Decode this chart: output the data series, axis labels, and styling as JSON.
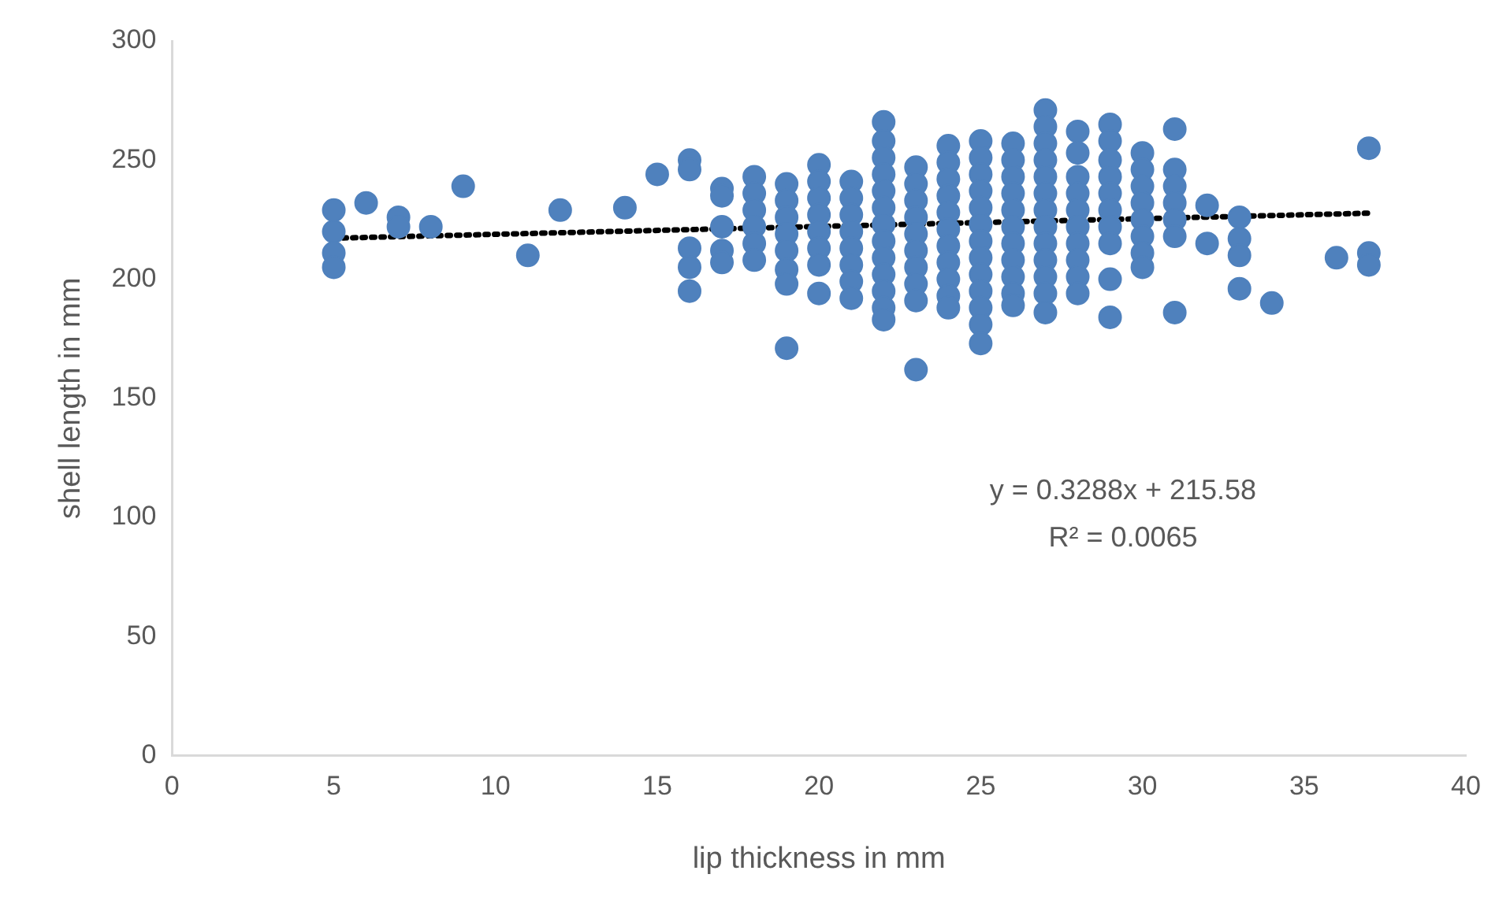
{
  "chart_data": {
    "type": "scatter",
    "xlabel": "lip thickness in mm",
    "ylabel": "shell length in mm",
    "xlim": [
      0,
      40
    ],
    "xticks": [
      0,
      5,
      10,
      15,
      20,
      25,
      30,
      35,
      40
    ],
    "ylim": [
      0,
      300
    ],
    "yticks": [
      0,
      50,
      100,
      150,
      200,
      250,
      300
    ],
    "grid": false,
    "legend": false,
    "marker": "circle",
    "annotations": [
      "y = 0.3288x + 215.58",
      "R² = 0.0065"
    ],
    "series": [
      {
        "type": "scatter",
        "color": "#4f81bd",
        "x": [
          5,
          5,
          5,
          5,
          6,
          7,
          7,
          8,
          9,
          11,
          12,
          14,
          15,
          16,
          16,
          16,
          16,
          16,
          17,
          17,
          17,
          17,
          17,
          18,
          18,
          18,
          18,
          18,
          18,
          19,
          19,
          19,
          19,
          19,
          19,
          19,
          19,
          20,
          20,
          20,
          20,
          20,
          20,
          20,
          20,
          21,
          21,
          21,
          21,
          21,
          21,
          21,
          21,
          22,
          22,
          22,
          22,
          22,
          22,
          22,
          22,
          22,
          22,
          22,
          22,
          22,
          23,
          23,
          23,
          23,
          23,
          23,
          23,
          23,
          23,
          23,
          24,
          24,
          24,
          24,
          24,
          24,
          24,
          24,
          24,
          24,
          24,
          25,
          25,
          25,
          25,
          25,
          25,
          25,
          25,
          25,
          25,
          25,
          25,
          25,
          26,
          26,
          26,
          26,
          26,
          26,
          26,
          26,
          26,
          26,
          26,
          27,
          27,
          27,
          27,
          27,
          27,
          27,
          27,
          27,
          27,
          27,
          27,
          27,
          28,
          28,
          28,
          28,
          28,
          28,
          28,
          28,
          28,
          28,
          29,
          29,
          29,
          29,
          29,
          29,
          29,
          29,
          29,
          29,
          30,
          30,
          30,
          30,
          30,
          30,
          30,
          30,
          31,
          31,
          31,
          31,
          31,
          31,
          31,
          32,
          32,
          33,
          33,
          33,
          33,
          34,
          36,
          37,
          37,
          37
        ],
        "values": [
          229,
          220,
          211,
          205,
          232,
          226,
          222,
          222,
          239,
          210,
          229,
          230,
          244,
          250,
          246,
          213,
          205,
          195,
          238,
          235,
          222,
          212,
          207,
          243,
          236,
          229,
          222,
          215,
          208,
          240,
          233,
          226,
          219,
          212,
          204,
          198,
          171,
          248,
          241,
          234,
          227,
          220,
          213,
          206,
          194,
          241,
          234,
          227,
          220,
          213,
          206,
          199,
          192,
          266,
          258,
          251,
          244,
          237,
          230,
          223,
          216,
          209,
          202,
          195,
          188,
          183,
          247,
          240,
          233,
          226,
          219,
          212,
          205,
          198,
          191,
          162,
          256,
          249,
          242,
          235,
          228,
          221,
          214,
          207,
          200,
          193,
          188,
          258,
          251,
          244,
          237,
          230,
          223,
          216,
          209,
          202,
          195,
          188,
          181,
          173,
          257,
          250,
          243,
          236,
          229,
          222,
          215,
          208,
          201,
          194,
          189,
          271,
          264,
          257,
          250,
          243,
          236,
          229,
          222,
          215,
          208,
          201,
          194,
          186,
          262,
          253,
          243,
          236,
          229,
          222,
          215,
          208,
          201,
          194,
          265,
          258,
          250,
          243,
          236,
          229,
          222,
          215,
          200,
          184,
          253,
          246,
          239,
          232,
          225,
          218,
          211,
          205,
          263,
          246,
          239,
          232,
          225,
          218,
          186,
          231,
          215,
          226,
          217,
          210,
          196,
          190,
          209,
          255,
          211,
          206
        ]
      },
      {
        "type": "line",
        "color": "#000000",
        "line_style": "dotted",
        "marker": "none",
        "x": [
          5,
          37
        ],
        "values": [
          217.2,
          227.7
        ]
      }
    ]
  }
}
